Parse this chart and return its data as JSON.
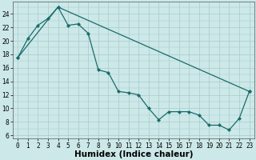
{
  "xlabel": "Humidex (Indice chaleur)",
  "background_color": "#cce8e8",
  "grid_color": "#aacaca",
  "line_color": "#1a6b6b",
  "xlim": [
    -0.5,
    23.5
  ],
  "ylim": [
    5.5,
    25.8
  ],
  "yticks": [
    6,
    8,
    10,
    12,
    14,
    16,
    18,
    20,
    22,
    24
  ],
  "xtick_labels": [
    "0",
    "1",
    "2",
    "3",
    "4",
    "5",
    "6",
    "7",
    "8",
    "9",
    "10",
    "11",
    "12",
    "13",
    "14",
    "15",
    "16",
    "17",
    "18",
    "19",
    "20",
    "21",
    "22",
    "23"
  ],
  "line1_x": [
    0,
    1,
    2,
    3,
    4,
    5,
    6,
    7,
    8,
    9,
    10,
    11,
    12,
    13,
    14,
    15,
    16,
    17,
    18,
    19,
    20,
    21,
    22,
    23
  ],
  "line1_y": [
    17.5,
    20.3,
    22.3,
    23.3,
    25.0,
    22.3,
    22.5,
    21.1,
    15.7,
    15.3,
    12.5,
    12.3,
    12.0,
    10.0,
    8.3,
    9.5,
    9.5,
    9.5,
    9.0,
    7.5,
    7.5,
    6.8,
    8.5,
    12.5
  ],
  "line2_x": [
    0,
    4,
    23
  ],
  "line2_y": [
    17.5,
    25.0,
    12.5
  ],
  "show_title": false,
  "axis_fontsize": 7,
  "tick_fontsize": 5.5,
  "xlabel_fontsize": 7.5
}
